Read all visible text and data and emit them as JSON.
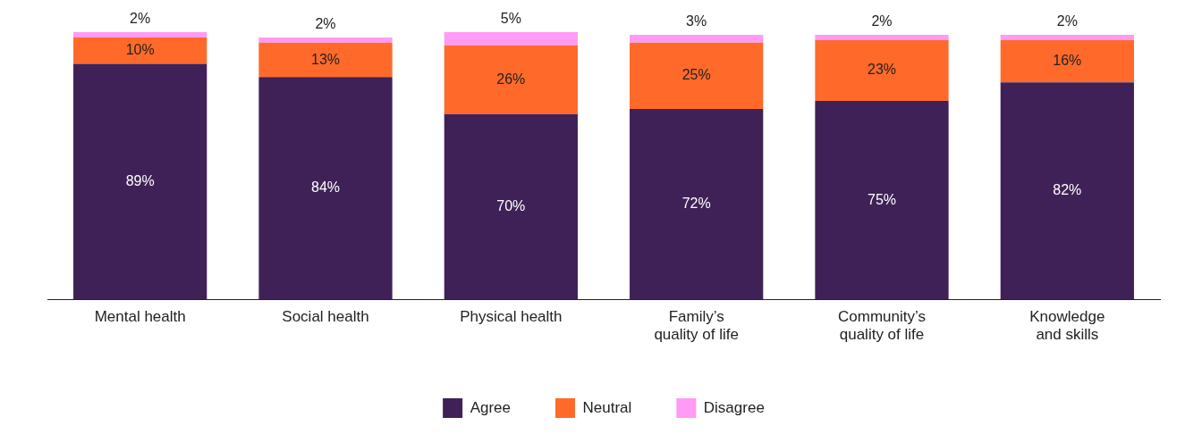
{
  "chart_data": {
    "type": "bar",
    "stacked": true,
    "legend": "bottom",
    "grid": false,
    "categories": [
      "Mental health",
      "Social health",
      "Physical health",
      "Family’s quality of life",
      "Community’s quality of life",
      "Knowledge and skills"
    ],
    "series": [
      {
        "name": "Agree",
        "color": "#3f2157",
        "values": [
          89,
          84,
          70,
          72,
          75,
          82
        ],
        "value_labels": [
          "89%",
          "84%",
          "70%",
          "72%",
          "75%",
          "82%"
        ]
      },
      {
        "name": "Neutral",
        "color": "#ff6a2a",
        "values": [
          10,
          13,
          26,
          25,
          23,
          16
        ],
        "value_labels": [
          "10%",
          "13%",
          "26%",
          "25%",
          "23%",
          "16%"
        ]
      },
      {
        "name": "Disagree",
        "color": "#ff9af5",
        "values": [
          2,
          2,
          5,
          3,
          2,
          2
        ],
        "value_labels": [
          "2%",
          "2%",
          "5%",
          "3%",
          "2%",
          "2%"
        ]
      }
    ]
  }
}
